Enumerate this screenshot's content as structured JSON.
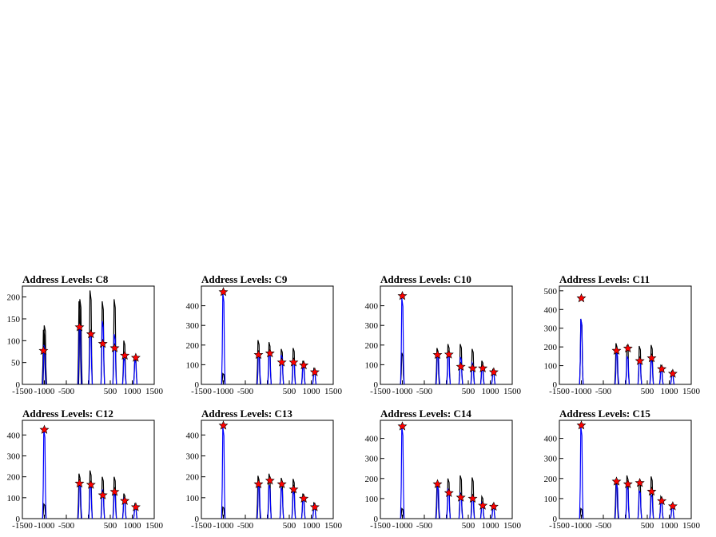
{
  "chart_data": [
    {
      "type": "bar",
      "title": "Address Levels: C8",
      "xlim": [
        -1500,
        1500
      ],
      "ylim": [
        0,
        225
      ],
      "x_ticks": [
        -1500,
        -1000,
        -500,
        0,
        500,
        1000,
        1500
      ],
      "x_tick_labels": [
        "-1500",
        "-1000",
        "-500",
        "",
        "500",
        "1000",
        "1500"
      ],
      "y_ticks": [
        0,
        50,
        100,
        150,
        200
      ],
      "y_tick_labels": [
        "0",
        "50",
        "100",
        "150",
        "200"
      ],
      "series": [
        {
          "style": "black-hist",
          "peaks": [
            [
              -1010,
              125
            ],
            [
              -990,
              135
            ],
            [
              -200,
              190
            ],
            [
              -180,
              195
            ],
            [
              50,
              215
            ],
            [
              330,
              190
            ],
            [
              600,
              195
            ],
            [
              820,
              100
            ],
            [
              1070,
              65
            ]
          ]
        },
        {
          "style": "blue-hist",
          "peaks": [
            [
              -1000,
              90
            ],
            [
              -190,
              140
            ],
            [
              50,
              120
            ],
            [
              330,
              145
            ],
            [
              600,
              115
            ],
            [
              820,
              60
            ],
            [
              1070,
              55
            ]
          ]
        },
        {
          "style": "red-star",
          "points": [
            [
              -1020,
              77
            ],
            [
              -200,
              131
            ],
            [
              60,
              115
            ],
            [
              330,
              93
            ],
            [
              600,
              83
            ],
            [
              830,
              66
            ],
            [
              1080,
              61
            ]
          ]
        }
      ]
    },
    {
      "type": "bar",
      "title": "Address Levels: C9",
      "xlim": [
        -1500,
        1500
      ],
      "ylim": [
        0,
        500
      ],
      "x_ticks": [
        -1500,
        -1000,
        -500,
        0,
        500,
        1000,
        1500
      ],
      "x_tick_labels": [
        "-1500",
        "-1000",
        "-500",
        "",
        "500",
        "1000",
        "1500"
      ],
      "y_ticks": [
        0,
        100,
        200,
        300,
        400
      ],
      "y_tick_labels": [
        "0",
        "100",
        "200",
        "300",
        "400"
      ],
      "series": [
        {
          "style": "black-hist",
          "peaks": [
            [
              -1000,
              55
            ],
            [
              -200,
              225
            ],
            [
              50,
              215
            ],
            [
              330,
              180
            ],
            [
              600,
              185
            ],
            [
              820,
              120
            ],
            [
              1070,
              80
            ]
          ]
        },
        {
          "style": "blue-hist",
          "peaks": [
            [
              -1000,
              465
            ],
            [
              -190,
              170
            ],
            [
              50,
              160
            ],
            [
              330,
              150
            ],
            [
              600,
              120
            ],
            [
              820,
              90
            ],
            [
              1070,
              70
            ]
          ]
        },
        {
          "style": "red-star",
          "points": [
            [
              -1000,
              470
            ],
            [
              -200,
              150
            ],
            [
              60,
              158
            ],
            [
              330,
              112
            ],
            [
              600,
              112
            ],
            [
              830,
              97
            ],
            [
              1080,
              62
            ]
          ]
        }
      ]
    },
    {
      "type": "bar",
      "title": "Address Levels: C10",
      "xlim": [
        -1500,
        1500
      ],
      "ylim": [
        0,
        500
      ],
      "x_ticks": [
        -1500,
        -1000,
        -500,
        0,
        500,
        1000,
        1500
      ],
      "x_tick_labels": [
        "-1500",
        "-1000",
        "-500",
        "",
        "500",
        "1000",
        "1500"
      ],
      "y_ticks": [
        0,
        100,
        200,
        300,
        400
      ],
      "y_tick_labels": [
        "0",
        "100",
        "200",
        "300",
        "400"
      ],
      "series": [
        {
          "style": "black-hist",
          "peaks": [
            [
              -1000,
              160
            ],
            [
              -200,
              185
            ],
            [
              50,
              205
            ],
            [
              330,
              205
            ],
            [
              600,
              180
            ],
            [
              820,
              120
            ],
            [
              1070,
              75
            ]
          ]
        },
        {
          "style": "blue-hist",
          "peaks": [
            [
              -1000,
              440
            ],
            [
              -190,
              160
            ],
            [
              50,
              150
            ],
            [
              330,
              140
            ],
            [
              600,
              110
            ],
            [
              820,
              80
            ],
            [
              1070,
              65
            ]
          ]
        },
        {
          "style": "red-star",
          "points": [
            [
              -1000,
              450
            ],
            [
              -200,
              150
            ],
            [
              60,
              152
            ],
            [
              330,
              90
            ],
            [
              600,
              82
            ],
            [
              830,
              82
            ],
            [
              1080,
              62
            ]
          ]
        }
      ]
    },
    {
      "type": "bar",
      "title": "Address Levels: C11",
      "xlim": [
        -1500,
        1500
      ],
      "ylim": [
        0,
        525
      ],
      "x_ticks": [
        -1500,
        -1000,
        -500,
        0,
        500,
        1000,
        1500
      ],
      "x_tick_labels": [
        "-1500",
        "-1000",
        "-500",
        "",
        "500",
        "1000",
        "1500"
      ],
      "y_ticks": [
        0,
        100,
        200,
        300,
        400,
        500
      ],
      "y_tick_labels": [
        "0",
        "100",
        "200",
        "300",
        "400",
        "500"
      ],
      "series": [
        {
          "style": "black-hist",
          "peaks": [
            [
              -1000,
              350
            ],
            [
              -200,
              220
            ],
            [
              50,
              210
            ],
            [
              330,
              205
            ],
            [
              600,
              210
            ],
            [
              820,
              100
            ],
            [
              1070,
              70
            ]
          ]
        },
        {
          "style": "blue-hist",
          "peaks": [
            [
              -1000,
              350
            ],
            [
              -190,
              170
            ],
            [
              50,
              150
            ],
            [
              330,
              140
            ],
            [
              600,
              130
            ],
            [
              820,
              80
            ],
            [
              1070,
              60
            ]
          ]
        },
        {
          "style": "red-star",
          "points": [
            [
              -1000,
              460
            ],
            [
              -200,
              180
            ],
            [
              60,
              192
            ],
            [
              330,
              125
            ],
            [
              600,
              140
            ],
            [
              830,
              82
            ],
            [
              1080,
              57
            ]
          ]
        }
      ]
    },
    {
      "type": "bar",
      "title": "Address Levels: C12",
      "xlim": [
        -1500,
        1500
      ],
      "ylim": [
        0,
        470
      ],
      "x_ticks": [
        -1500,
        -1000,
        -500,
        0,
        500,
        1000,
        1500
      ],
      "x_tick_labels": [
        "-1500",
        "-1000",
        "-500",
        "",
        "500",
        "1000",
        "1500"
      ],
      "y_ticks": [
        0,
        100,
        200,
        300,
        400
      ],
      "y_tick_labels": [
        "0",
        "100",
        "200",
        "300",
        "400"
      ],
      "series": [
        {
          "style": "black-hist",
          "peaks": [
            [
              -1000,
              70
            ],
            [
              -200,
              215
            ],
            [
              50,
              230
            ],
            [
              330,
              200
            ],
            [
              600,
              200
            ],
            [
              820,
              120
            ],
            [
              1070,
              70
            ]
          ]
        },
        {
          "style": "blue-hist",
          "peaks": [
            [
              -1000,
              430
            ],
            [
              -190,
              170
            ],
            [
              50,
              160
            ],
            [
              330,
              140
            ],
            [
              600,
              120
            ],
            [
              820,
              95
            ],
            [
              1070,
              60
            ]
          ]
        },
        {
          "style": "red-star",
          "points": [
            [
              -1000,
              425
            ],
            [
              -200,
              168
            ],
            [
              60,
              162
            ],
            [
              330,
              112
            ],
            [
              600,
              128
            ],
            [
              830,
              85
            ],
            [
              1080,
              55
            ]
          ]
        }
      ]
    },
    {
      "type": "bar",
      "title": "Address Levels: C13",
      "xlim": [
        -1500,
        1500
      ],
      "ylim": [
        0,
        470
      ],
      "x_ticks": [
        -1500,
        -1000,
        -500,
        0,
        500,
        1000,
        1500
      ],
      "x_tick_labels": [
        "-1500",
        "-1000",
        "-500",
        "",
        "500",
        "1000",
        "1500"
      ],
      "y_ticks": [
        0,
        100,
        200,
        300,
        400
      ],
      "y_tick_labels": [
        "0",
        "100",
        "200",
        "300",
        "400"
      ],
      "series": [
        {
          "style": "black-hist",
          "peaks": [
            [
              -1000,
              55
            ],
            [
              -200,
              205
            ],
            [
              50,
              215
            ],
            [
              330,
              195
            ],
            [
              600,
              190
            ],
            [
              820,
              120
            ],
            [
              1070,
              75
            ]
          ]
        },
        {
          "style": "blue-hist",
          "peaks": [
            [
              -1000,
              440
            ],
            [
              -190,
              170
            ],
            [
              50,
              160
            ],
            [
              330,
              150
            ],
            [
              600,
              130
            ],
            [
              820,
              95
            ],
            [
              1070,
              65
            ]
          ]
        },
        {
          "style": "red-star",
          "points": [
            [
              -1000,
              445
            ],
            [
              -200,
              165
            ],
            [
              60,
              182
            ],
            [
              330,
              165
            ],
            [
              600,
              140
            ],
            [
              830,
              96
            ],
            [
              1080,
              55
            ]
          ]
        }
      ]
    },
    {
      "type": "bar",
      "title": "Address Levels: C14",
      "xlim": [
        -1500,
        1500
      ],
      "ylim": [
        0,
        490
      ],
      "x_ticks": [
        -1500,
        -1000,
        -500,
        0,
        500,
        1000,
        1500
      ],
      "x_tick_labels": [
        "-1500",
        "-1000",
        "-500",
        "",
        "500",
        "1000",
        "1500"
      ],
      "y_ticks": [
        0,
        100,
        200,
        300,
        400
      ],
      "y_tick_labels": [
        "0",
        "100",
        "200",
        "300",
        "400"
      ],
      "series": [
        {
          "style": "black-hist",
          "peaks": [
            [
              -1000,
              50
            ],
            [
              -200,
              175
            ],
            [
              50,
              200
            ],
            [
              330,
              215
            ],
            [
              600,
              205
            ],
            [
              820,
              110
            ],
            [
              1070,
              70
            ]
          ]
        },
        {
          "style": "blue-hist",
          "peaks": [
            [
              -1000,
              460
            ],
            [
              -190,
              160
            ],
            [
              50,
              150
            ],
            [
              330,
              130
            ],
            [
              600,
              110
            ],
            [
              820,
              80
            ],
            [
              1070,
              60
            ]
          ]
        },
        {
          "style": "red-star",
          "points": [
            [
              -1000,
              460
            ],
            [
              -200,
              172
            ],
            [
              60,
              128
            ],
            [
              330,
              105
            ],
            [
              600,
              100
            ],
            [
              830,
              65
            ],
            [
              1080,
              60
            ]
          ]
        }
      ]
    },
    {
      "type": "bar",
      "title": "Address Levels: C15",
      "xlim": [
        -1500,
        1500
      ],
      "ylim": [
        0,
        490
      ],
      "x_ticks": [
        -1500,
        -1000,
        -500,
        0,
        500,
        1000,
        1500
      ],
      "x_tick_labels": [
        "-1500",
        "-1000",
        "-500",
        "",
        "500",
        "1000",
        "1500"
      ],
      "y_ticks": [
        0,
        100,
        200,
        300,
        400
      ],
      "y_tick_labels": [
        "0",
        "100",
        "200",
        "300",
        "400"
      ],
      "series": [
        {
          "style": "black-hist",
          "peaks": [
            [
              -1000,
              50
            ],
            [
              -200,
              185
            ],
            [
              50,
              215
            ],
            [
              330,
              190
            ],
            [
              600,
              210
            ],
            [
              820,
              110
            ],
            [
              1070,
              70
            ]
          ]
        },
        {
          "style": "blue-hist",
          "peaks": [
            [
              -1000,
              460
            ],
            [
              -190,
              170
            ],
            [
              50,
              160
            ],
            [
              330,
              140
            ],
            [
              600,
              120
            ],
            [
              820,
              90
            ],
            [
              1070,
              60
            ]
          ]
        },
        {
          "style": "red-star",
          "points": [
            [
              -1000,
              465
            ],
            [
              -200,
              185
            ],
            [
              60,
              172
            ],
            [
              330,
              178
            ],
            [
              600,
              135
            ],
            [
              830,
              88
            ],
            [
              1080,
              62
            ]
          ]
        }
      ]
    }
  ]
}
